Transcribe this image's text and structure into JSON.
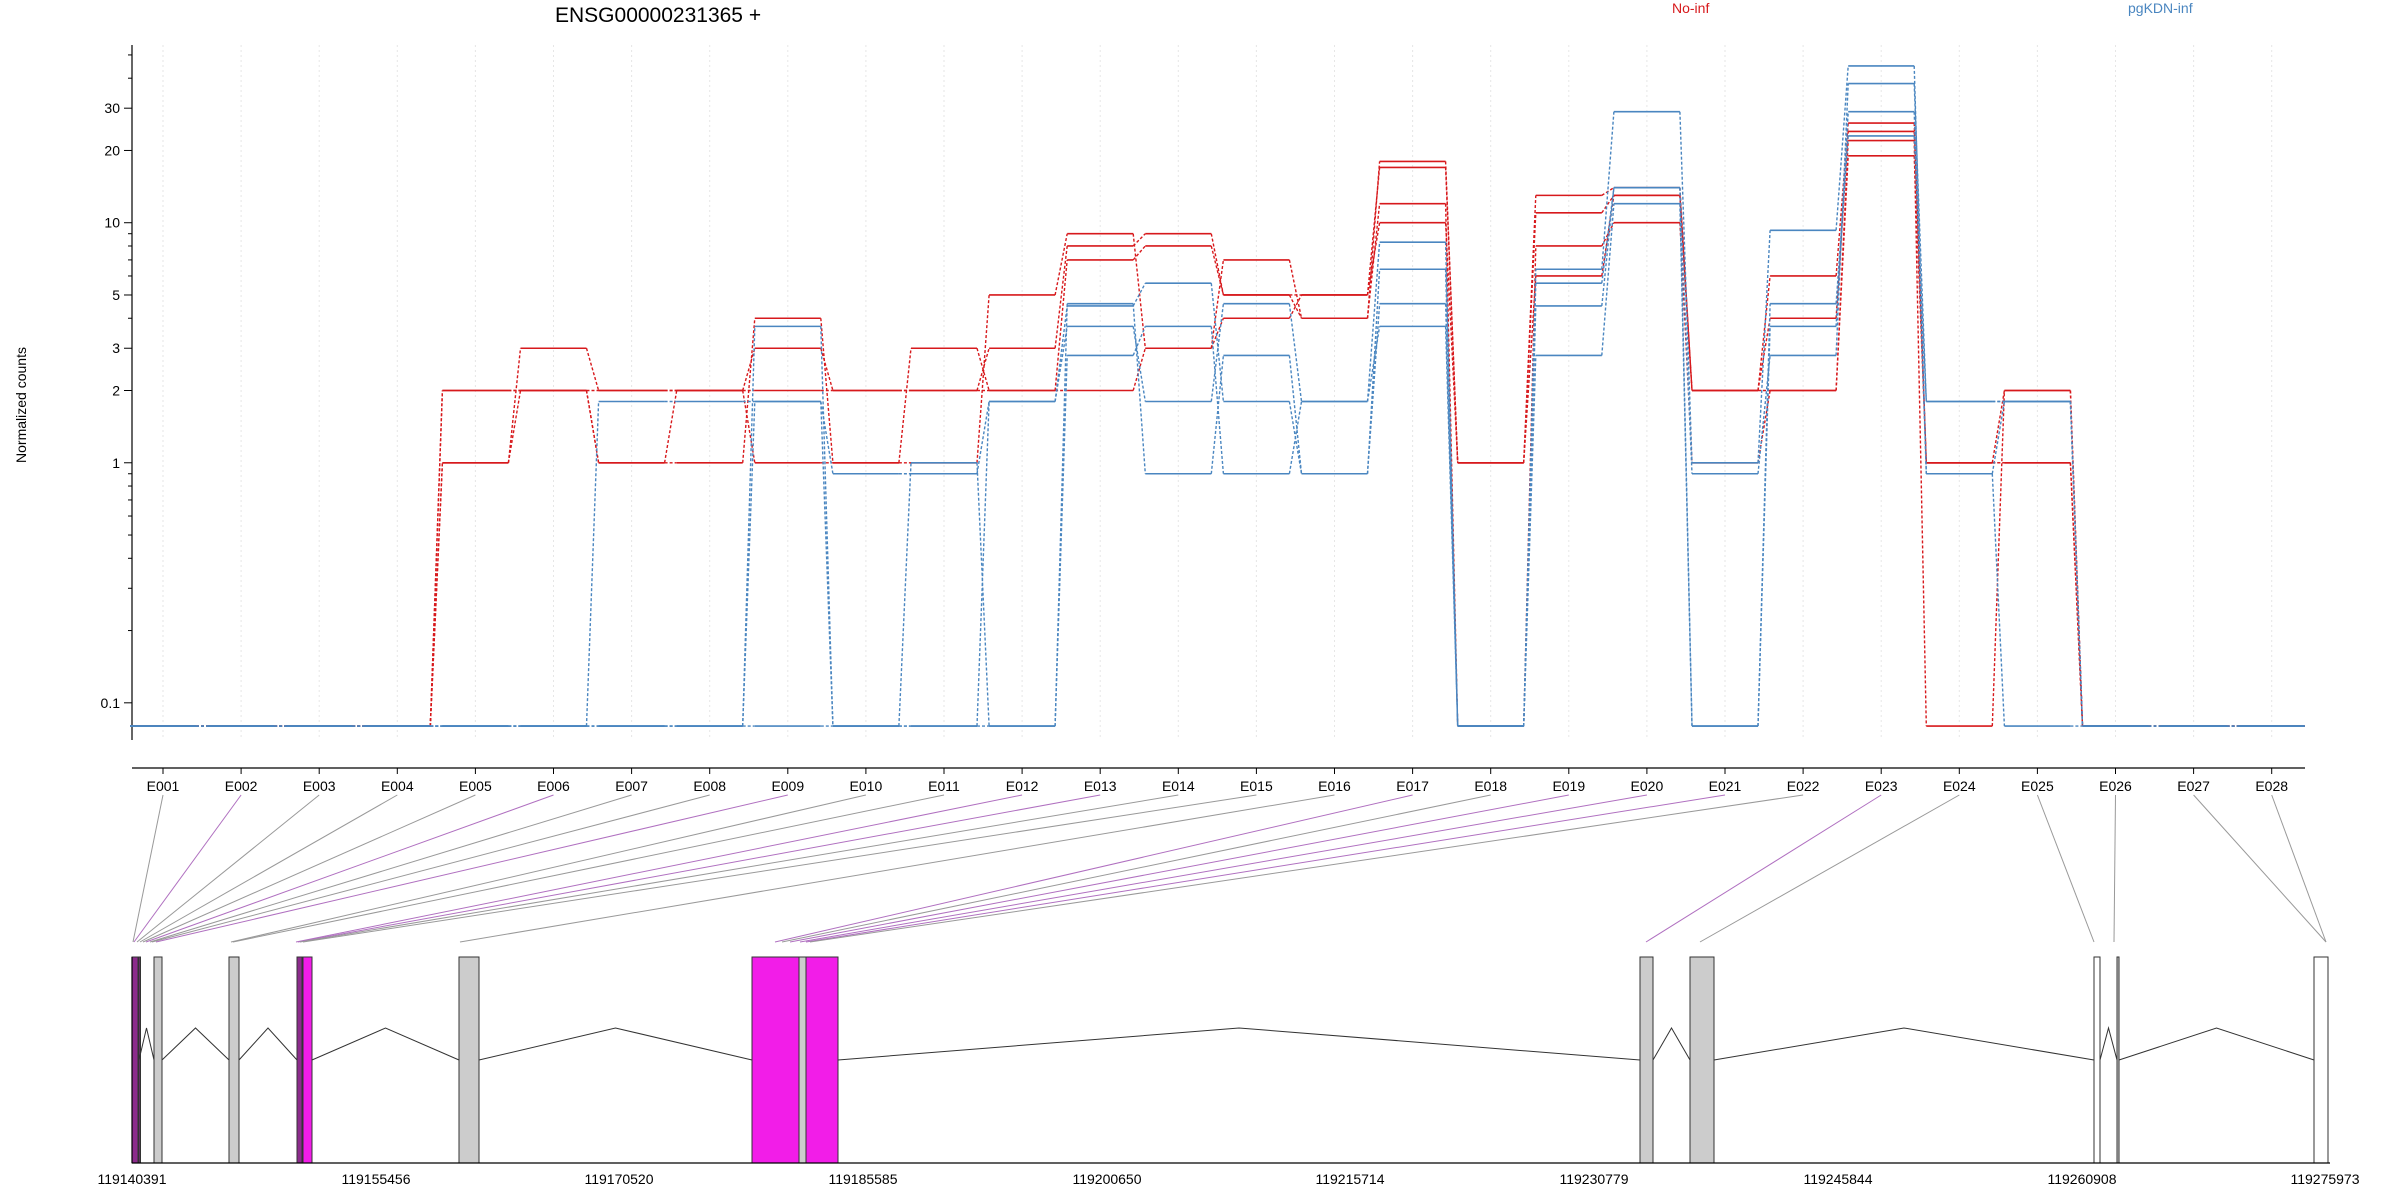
{
  "chart_data": {
    "type": "line",
    "title": "ENSG00000231365 +",
    "ylabel": "Normalized counts",
    "yscale": "log",
    "ylim": [
      0.07,
      55
    ],
    "yticks": [
      "0.1",
      "1",
      "2",
      "3",
      "5",
      "10",
      "20",
      "30"
    ],
    "ytick_values": [
      0.1,
      1,
      2,
      3,
      5,
      10,
      20,
      30
    ],
    "grid": "vertical dotted",
    "legend": [
      {
        "name": "No-inf",
        "color": "#d7191c"
      },
      {
        "name": "pgKDN-inf",
        "color": "#4a86c0"
      }
    ],
    "categories": [
      "E001",
      "E002",
      "E003",
      "E004",
      "E005",
      "E006",
      "E007",
      "E008",
      "E009",
      "E010",
      "E011",
      "E012",
      "E013",
      "E014",
      "E015",
      "E016",
      "E017",
      "E018",
      "E019",
      "E020",
      "E021",
      "E022",
      "E023",
      "E024",
      "E025",
      "E026",
      "E027",
      "E028"
    ],
    "zero_value": 0.08,
    "series": [
      {
        "group": "No-inf",
        "values": [
          0,
          0,
          0,
          0,
          2,
          2,
          2,
          2,
          2,
          2,
          2,
          2,
          7,
          8,
          5,
          5,
          17,
          1,
          13,
          14,
          2,
          6,
          26,
          1,
          2,
          0,
          0,
          0
        ]
      },
      {
        "group": "No-inf",
        "values": [
          0,
          0,
          0,
          0,
          1,
          3,
          2,
          2,
          3,
          2,
          2,
          3,
          8,
          9,
          5,
          4,
          18,
          1,
          11,
          13,
          2,
          4,
          24,
          1,
          1,
          0,
          0,
          0
        ]
      },
      {
        "group": "No-inf",
        "values": [
          0,
          0,
          0,
          0,
          1,
          2,
          1,
          1,
          4,
          1,
          1,
          5,
          9,
          3,
          7,
          4,
          12,
          0,
          8,
          10,
          1,
          2,
          19,
          1,
          1,
          0,
          0,
          0
        ]
      },
      {
        "group": "No-inf",
        "values": [
          0,
          0,
          0,
          0,
          2,
          2,
          1,
          2,
          1,
          1,
          3,
          2,
          2,
          3,
          4,
          5,
          10,
          1,
          6,
          13,
          2,
          2,
          22,
          0,
          2,
          0,
          0,
          0
        ]
      },
      {
        "group": "pgKDN-inf",
        "values": [
          0,
          0,
          0,
          0,
          0,
          0,
          1.8,
          1.8,
          1.8,
          0.9,
          0.9,
          1.8,
          4.5,
          5.6,
          1.8,
          0.9,
          6.4,
          0,
          4.5,
          14,
          0.9,
          2.8,
          38,
          1.8,
          1.8,
          0,
          0,
          0
        ]
      },
      {
        "group": "pgKDN-inf",
        "values": [
          0,
          0,
          0,
          0,
          0,
          0,
          0,
          0,
          3.7,
          0,
          0,
          1.8,
          3.7,
          1.8,
          4.6,
          1.8,
          8.3,
          0,
          6.4,
          29,
          1,
          9.3,
          45,
          0.9,
          1.8,
          0,
          0,
          0
        ]
      },
      {
        "group": "pgKDN-inf",
        "values": [
          0,
          0,
          0,
          0,
          0,
          0,
          0,
          0,
          0,
          0,
          1,
          0,
          2.8,
          3.7,
          0.9,
          1.8,
          3.7,
          0,
          2.8,
          12,
          0,
          3.7,
          29,
          0.9,
          0,
          0,
          0,
          0
        ]
      },
      {
        "group": "pgKDN-inf",
        "values": [
          0,
          0,
          0,
          0,
          0,
          0,
          0,
          0,
          1.8,
          0,
          0,
          0,
          4.6,
          0.9,
          2.8,
          0.9,
          4.6,
          0,
          5.6,
          14,
          0,
          4.6,
          23,
          1.8,
          1.8,
          0,
          0,
          0
        ]
      }
    ],
    "exon_track": {
      "coordinate_labels": [
        "119140391",
        "119155456",
        "119170520",
        "119185585",
        "119200650",
        "119215714",
        "119230779",
        "119245844",
        "119260908",
        "119275973"
      ],
      "highlighted_exons": [
        "E002",
        "E006",
        "E009",
        "E012",
        "E013",
        "E017",
        "E019",
        "E020",
        "E021",
        "E023"
      ],
      "highlight_color": "#f21de8",
      "exon_color": "#cccccc"
    }
  }
}
